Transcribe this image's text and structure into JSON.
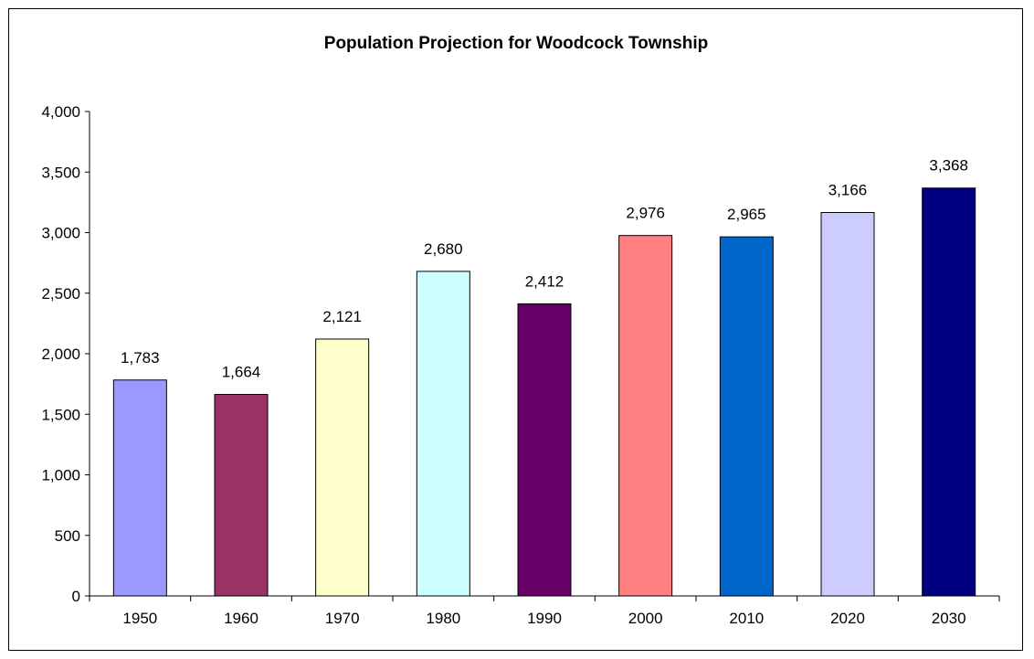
{
  "chart_data": {
    "type": "bar",
    "title": "Population Projection for Woodcock Township",
    "xlabel": "",
    "ylabel": "",
    "categories": [
      "1950",
      "1960",
      "1970",
      "1980",
      "1990",
      "2000",
      "2010",
      "2020",
      "2030"
    ],
    "values": [
      1783,
      1664,
      2121,
      2680,
      2412,
      2976,
      2965,
      3166,
      3368
    ],
    "data_labels": [
      "1,783",
      "1,664",
      "2,121",
      "2,680",
      "2,412",
      "2,976",
      "2,965",
      "3,166",
      "3,368"
    ],
    "bar_colors": [
      "#9999ff",
      "#993366",
      "#ffffcc",
      "#ccffff",
      "#660066",
      "#ff8080",
      "#0066cc",
      "#ccccff",
      "#000080"
    ],
    "ylim": [
      0,
      4000
    ],
    "y_ticks": [
      0,
      500,
      1000,
      1500,
      2000,
      2500,
      3000,
      3500,
      4000
    ],
    "y_tick_labels": [
      "0",
      "500",
      "1,000",
      "1,500",
      "2,000",
      "2,500",
      "3,000",
      "3,500",
      "4,000"
    ],
    "grid": false,
    "legend": "none"
  }
}
